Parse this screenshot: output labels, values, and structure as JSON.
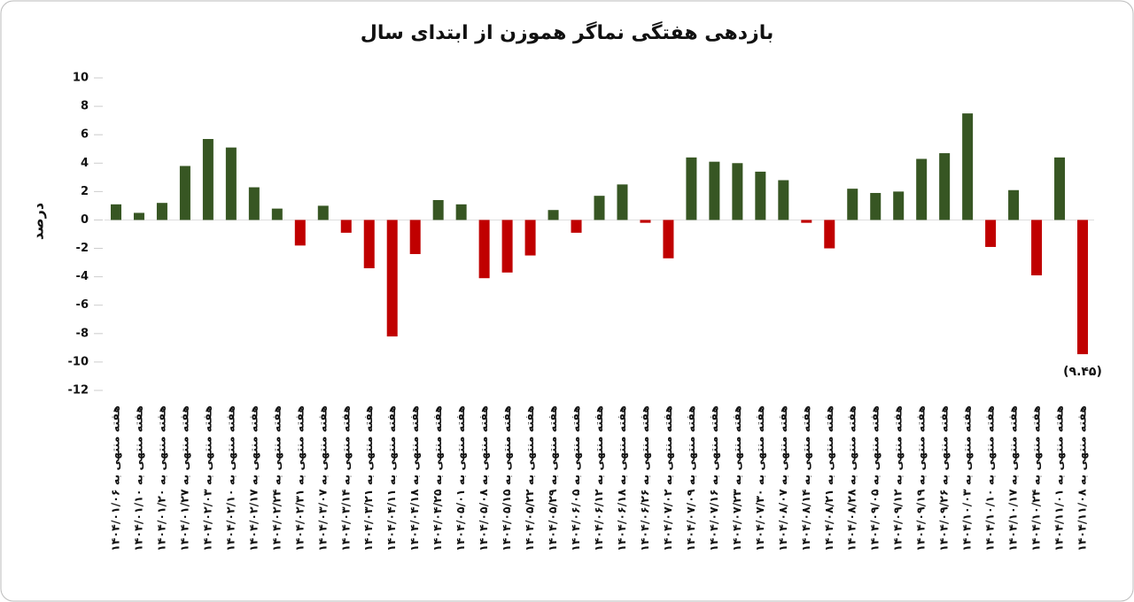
{
  "chart_data": {
    "type": "bar",
    "title": "بازدهی هفتگی نماگر هموزن از ابتدای سال",
    "y_label": "درصد",
    "categories": [
      "هفته منتهی به ۱۴۰۴/۰۱/۰۶",
      "هفته منتهی به ۱۴۰۴/۰۱/۱۰",
      "هفته منتهی به ۱۴۰۴/۰۱/۲۰",
      "هفته منتهی به ۱۴۰۴/۰۱/۲۷",
      "هفته منتهی به ۱۴۰۴/۰۲/۰۳",
      "هفته منتهی به ۱۴۰۴/۰۲/۱۰",
      "هفته منتهی به ۱۴۰۴/۰۲/۱۷",
      "هفته منتهی به ۱۴۰۴/۰۲/۲۴",
      "هفته منتهی به ۱۴۰۴/۰۲/۳۱",
      "هفته منتهی به ۱۴۰۴/۰۳/۰۷",
      "هفته منتهی به ۱۴۰۴/۰۳/۱۴",
      "هفته منتهی به ۱۴۰۴/۰۳/۲۱",
      "هفته منتهی به ۱۴۰۴/۰۴/۱۱",
      "هفته منتهی به ۱۴۰۴/۰۴/۱۸",
      "هفته منتهی به ۱۴۰۴/۰۴/۲۵",
      "هفته منتهی به ۱۴۰۴/۰۵/۰۱",
      "هفته منتهی به ۱۴۰۴/۰۵/۰۸",
      "هفته منتهی به ۱۴۰۴/۰۵/۱۵",
      "هفته منتهی به ۱۴۰۴/۰۵/۲۲",
      "هفته منتهی به ۱۴۰۴/۰۵/۲۹",
      "هفته منتهی به ۱۴۰۴/۰۶/۰۵",
      "هفته منتهی به ۱۴۰۴/۰۶/۱۲",
      "هفته منتهی به ۱۴۰۴/۰۶/۱۸",
      "هفته منتهی به ۱۴۰۴/۰۶/۲۶",
      "هفته منتهی به ۱۴۰۴/۰۷/۰۲",
      "هفته منتهی به ۱۴۰۴/۰۷/۰۹",
      "هفته منتهی به ۱۴۰۴/۰۷/۱۶",
      "هفته منتهی به ۱۴۰۴/۰۷/۲۳",
      "هفته منتهی به ۱۴۰۴/۰۷/۳۰",
      "هفته منتهی به ۱۴۰۴/۰۸/۰۷",
      "هفته منتهی به ۱۴۰۴/۰۸/۱۴",
      "هفته منتهی به ۱۴۰۴/۰۸/۲۱",
      "هفته منتهی به ۱۴۰۴/۰۸/۲۸",
      "هفته منتهی به ۱۴۰۴/۰۹/۰۵",
      "هفته منتهی به ۱۴۰۴/۰۹/۱۲",
      "هفته منتهی به ۱۴۰۴/۰۹/۱۹",
      "هفته منتهی به ۱۴۰۴/۰۹/۲۶",
      "هفته منتهی به ۱۴۰۴/۱۰/۰۳",
      "هفته منتهی به ۱۴۰۴/۱۰/۱۰",
      "هفته منتهی به ۱۴۰۴/۱۰/۱۷",
      "هفته منتهی به ۱۴۰۴/۱۰/۲۴",
      "هفته منتهی به ۱۴۰۴/۱۱/۰۱",
      "هفته منتهی به ۱۴۰۴/۱۱/۰۸"
    ],
    "values": [
      1.1,
      0.5,
      1.2,
      3.8,
      5.7,
      5.1,
      2.3,
      0.8,
      -1.8,
      1.0,
      -0.9,
      -3.4,
      -8.2,
      -2.4,
      1.4,
      1.1,
      -4.1,
      -3.7,
      -2.5,
      0.7,
      -0.9,
      1.7,
      2.5,
      -0.2,
      -2.7,
      4.4,
      4.1,
      4.0,
      3.4,
      2.8,
      -0.2,
      -2.0,
      2.2,
      1.9,
      2.0,
      4.3,
      4.7,
      7.5,
      -1.9,
      2.1,
      -3.9,
      4.4,
      -9.45
    ],
    "value_labels": [
      null,
      null,
      null,
      null,
      null,
      null,
      null,
      null,
      null,
      null,
      null,
      null,
      null,
      null,
      null,
      null,
      null,
      null,
      null,
      null,
      null,
      null,
      null,
      null,
      null,
      null,
      null,
      null,
      null,
      null,
      null,
      null,
      null,
      null,
      null,
      null,
      null,
      null,
      null,
      null,
      null,
      null,
      "(۹.۴۵)"
    ],
    "positive_color": "#375623",
    "negative_color": "#c00000",
    "ylim": [
      -12,
      10
    ],
    "yticks": [
      10,
      8,
      6,
      4,
      2,
      0,
      -2,
      -4,
      -6,
      -8,
      -10,
      -12
    ]
  }
}
